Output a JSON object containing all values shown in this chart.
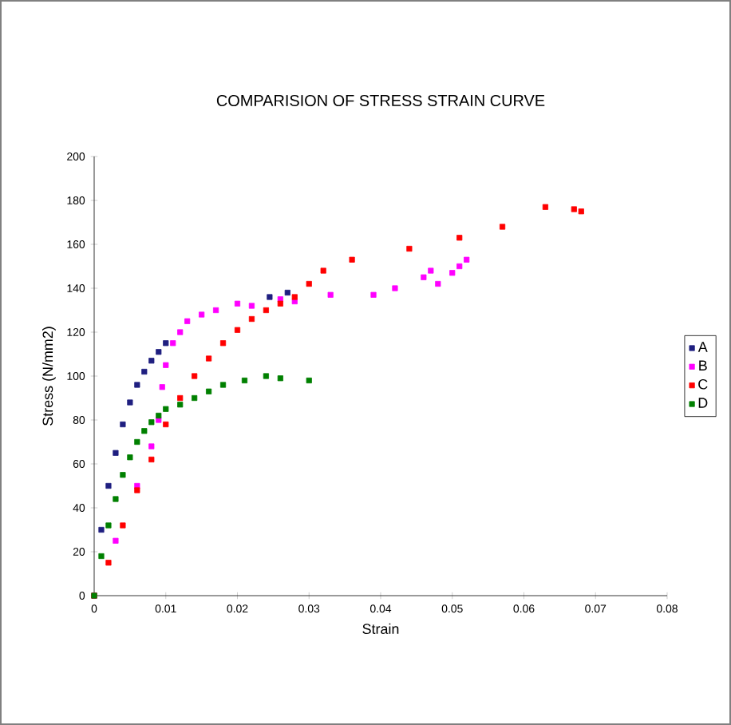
{
  "chart_data": {
    "type": "scatter",
    "title": "COMPARISION OF STRESS STRAIN CURVE",
    "xlabel": "Strain",
    "ylabel": "Stress (N/mm2)",
    "xlim": [
      0,
      0.08
    ],
    "xticks": [
      0,
      0.01,
      0.02,
      0.03,
      0.04,
      0.05,
      0.06,
      0.07,
      0.08
    ],
    "ylim": [
      0,
      200
    ],
    "yticks": [
      0,
      20,
      40,
      60,
      80,
      100,
      120,
      140,
      160,
      180,
      200
    ],
    "grid": false,
    "legend": "right",
    "marker": "square",
    "series": [
      {
        "name": "A",
        "color": "#1f1f80",
        "x": [
          0,
          0.001,
          0.002,
          0.003,
          0.004,
          0.005,
          0.006,
          0.007,
          0.008,
          0.009,
          0.01,
          0.0245,
          0.027
        ],
        "values": [
          0,
          30,
          50,
          65,
          78,
          88,
          96,
          102,
          107,
          111,
          115,
          136,
          138
        ]
      },
      {
        "name": "B",
        "color": "#ff00ff",
        "x": [
          0,
          0.003,
          0.006,
          0.008,
          0.009,
          0.0095,
          0.01,
          0.011,
          0.012,
          0.013,
          0.015,
          0.017,
          0.02,
          0.022,
          0.026,
          0.028,
          0.033,
          0.039,
          0.042,
          0.046,
          0.047,
          0.048,
          0.05,
          0.051,
          0.052
        ],
        "values": [
          0,
          25,
          50,
          68,
          80,
          95,
          105,
          115,
          120,
          125,
          128,
          130,
          133,
          132,
          135,
          134,
          137,
          137,
          140,
          145,
          148,
          142,
          147,
          150,
          153
        ]
      },
      {
        "name": "C",
        "color": "#ff0000",
        "x": [
          0,
          0.002,
          0.004,
          0.006,
          0.008,
          0.01,
          0.012,
          0.014,
          0.016,
          0.018,
          0.02,
          0.022,
          0.024,
          0.026,
          0.028,
          0.03,
          0.032,
          0.036,
          0.044,
          0.051,
          0.057,
          0.063,
          0.067,
          0.068
        ],
        "values": [
          0,
          15,
          32,
          48,
          62,
          78,
          90,
          100,
          108,
          115,
          121,
          126,
          130,
          133,
          136,
          142,
          148,
          153,
          158,
          163,
          168,
          177,
          176,
          175
        ]
      },
      {
        "name": "D",
        "color": "#008000",
        "x": [
          0,
          0.001,
          0.002,
          0.003,
          0.004,
          0.005,
          0.006,
          0.007,
          0.008,
          0.009,
          0.01,
          0.012,
          0.014,
          0.016,
          0.018,
          0.021,
          0.024,
          0.026,
          0.03
        ],
        "values": [
          0,
          18,
          32,
          44,
          55,
          63,
          70,
          75,
          79,
          82,
          85,
          87,
          90,
          93,
          96,
          98,
          100,
          99,
          98
        ]
      }
    ]
  }
}
